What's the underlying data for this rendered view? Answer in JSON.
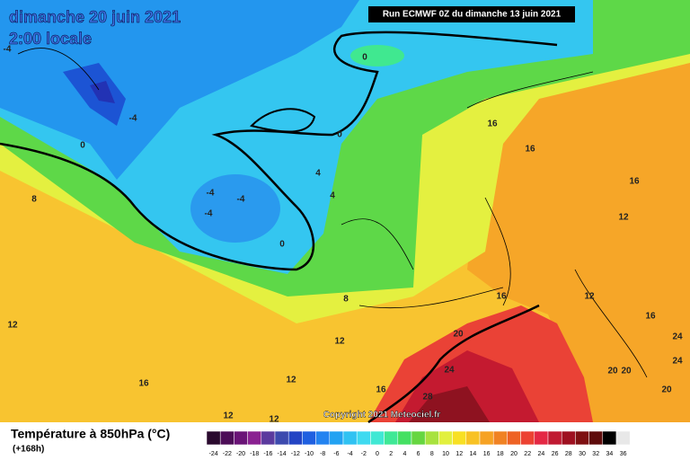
{
  "header": {
    "title": "dimanche 20 juin 2021",
    "subtitle": "2:00 locale",
    "run": "Run ECMWF 0Z du dimanche 13 juin 2021"
  },
  "map": {
    "contour_labels": [
      "-4",
      "-4",
      "0",
      "0",
      "0",
      "-4",
      "-4",
      "-4",
      "0",
      "4",
      "4",
      "8",
      "8",
      "12",
      "12",
      "12",
      "12",
      "12",
      "16",
      "16",
      "16",
      "12",
      "16",
      "12",
      "16",
      "24",
      "20",
      "24",
      "16",
      "16",
      "28",
      "20",
      "20",
      "24",
      "20"
    ]
  },
  "footer": {
    "copyright": "Copyright 2021 Meteociel.fr",
    "legend_title": "Température à 850hPa (°C)",
    "lead_time": "(+168h)",
    "scale": [
      {
        "value": -24,
        "color": "#2a0a2e"
      },
      {
        "value": -22,
        "color": "#4c0d57"
      },
      {
        "value": -20,
        "color": "#6a1477"
      },
      {
        "value": -18,
        "color": "#8a2191"
      },
      {
        "value": -16,
        "color": "#5b3a9e"
      },
      {
        "value": -14,
        "color": "#3d4aae"
      },
      {
        "value": -12,
        "color": "#2344c4"
      },
      {
        "value": -10,
        "color": "#1f5fe0"
      },
      {
        "value": -8,
        "color": "#2383f0"
      },
      {
        "value": -6,
        "color": "#22a2f2"
      },
      {
        "value": -4,
        "color": "#30c2f2"
      },
      {
        "value": -2,
        "color": "#3fdaf0"
      },
      {
        "value": 0,
        "color": "#40e8d4"
      },
      {
        "value": 2,
        "color": "#3fe896"
      },
      {
        "value": 4,
        "color": "#44e062"
      },
      {
        "value": 6,
        "color": "#66d640"
      },
      {
        "value": 8,
        "color": "#a8e23e"
      },
      {
        "value": 10,
        "color": "#e2f03e"
      },
      {
        "value": 12,
        "color": "#f8e024"
      },
      {
        "value": 14,
        "color": "#f8c224"
      },
      {
        "value": 16,
        "color": "#f6a224"
      },
      {
        "value": 18,
        "color": "#f08224"
      },
      {
        "value": 20,
        "color": "#ee6224"
      },
      {
        "value": 22,
        "color": "#ec4232"
      },
      {
        "value": 24,
        "color": "#e42844"
      },
      {
        "value": 26,
        "color": "#c01a32"
      },
      {
        "value": 28,
        "color": "#9e1020"
      },
      {
        "value": 30,
        "color": "#7e1012"
      },
      {
        "value": 32,
        "color": "#5e0c0c"
      },
      {
        "value": 34,
        "color": "#000000"
      },
      {
        "value": 36,
        "color": "#e8e8e8"
      }
    ]
  }
}
